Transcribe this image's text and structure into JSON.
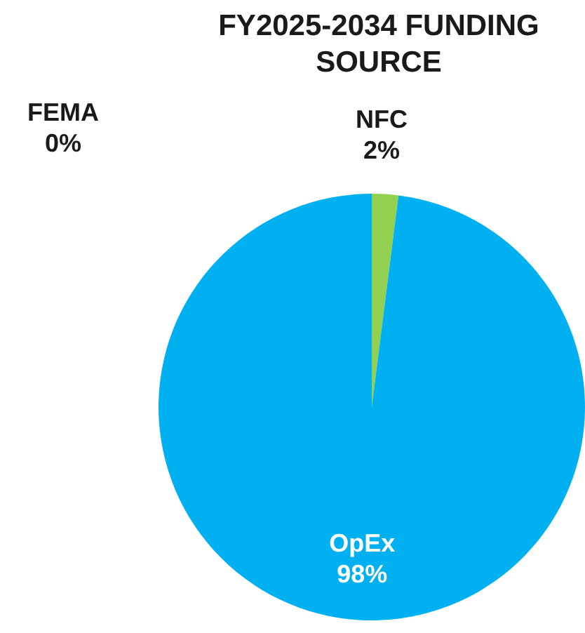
{
  "chart_data": {
    "type": "pie",
    "title": "FY2025-2034 FUNDING SOURCE",
    "categories": [
      "FEMA",
      "NFC",
      "OpEx"
    ],
    "values": [
      0,
      2,
      98
    ],
    "value_labels": [
      "0%",
      "2%",
      "98%"
    ],
    "colors": [
      "#ff0000",
      "#92d050",
      "#00b0f0"
    ],
    "legend": false
  }
}
